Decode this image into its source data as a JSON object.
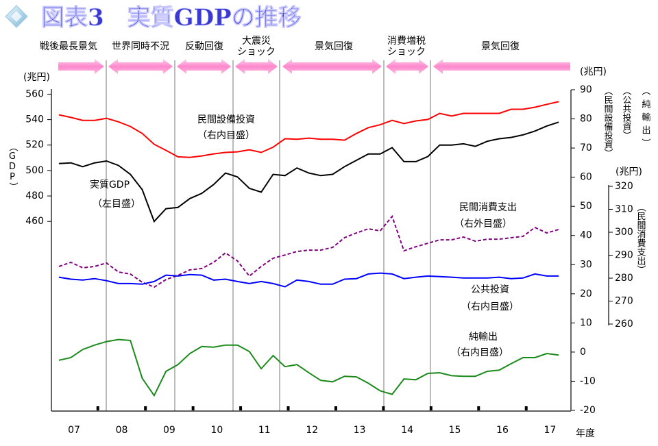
{
  "chart_data": {
    "type": "line",
    "title": "図表3　実質GDPの推移",
    "periods": [
      {
        "label": [
          "戦後最長景気"
        ]
      },
      {
        "label": [
          "世界同時不況"
        ]
      },
      {
        "label": [
          "反動回復"
        ]
      },
      {
        "label": [
          "大震災",
          "ショック"
        ]
      },
      {
        "label": [
          "景気回復"
        ]
      },
      {
        "label": [
          "消費増税",
          "ショック"
        ]
      },
      {
        "label": [
          "景気回復"
        ]
      }
    ],
    "years": [
      "07",
      "08",
      "09",
      "10",
      "11",
      "12",
      "13",
      "14",
      "15",
      "16",
      "17"
    ],
    "x_label": "年度",
    "y_unit": "(兆円)",
    "y_label": "（GDP）",
    "ylim": [
      311,
      564
    ],
    "yticks": [
      460,
      480,
      500,
      520,
      540,
      560
    ],
    "y2_unit": "(兆円)",
    "y2_labels": [
      "（民間設備投資）",
      "（公共投資）",
      "（純輸出）"
    ],
    "y2lim": [
      -20,
      90
    ],
    "y2ticks": [
      -20,
      -10,
      0,
      10,
      20,
      30,
      40,
      50,
      60,
      70,
      80,
      90
    ],
    "y3_unit": "(兆円)",
    "y3_label": "（民間消費支出）",
    "y3lim": [
      260,
      320
    ],
    "y3ticks": [
      260,
      270,
      280,
      290,
      300,
      310,
      320
    ],
    "series": [
      {
        "name": "実質GDP",
        "scale_label": "（左目盛）",
        "color": "#000000",
        "axis": "y",
        "dashed": false,
        "values": [
          505.5,
          506,
          503,
          506,
          507.5,
          504,
          497,
          485,
          460,
          470,
          471,
          478,
          482,
          489,
          498,
          495,
          486,
          483,
          497,
          496,
          502,
          498,
          496,
          497,
          503,
          508,
          513,
          513,
          518,
          507,
          507,
          511,
          520,
          520,
          521,
          519,
          523,
          525,
          526,
          528,
          531,
          535,
          538
        ]
      },
      {
        "name": "民間設備投資",
        "scale_label": "（右内目盛）",
        "color": "#ff0000",
        "axis": "y2",
        "dashed": false,
        "values": [
          81.4,
          80.5,
          79.5,
          79.5,
          80.2,
          79,
          77.4,
          75,
          71.3,
          69.2,
          67,
          66.8,
          67.3,
          68,
          68.5,
          68.7,
          69.4,
          68.5,
          70.3,
          73.2,
          73,
          73.4,
          73,
          73,
          72.7,
          75,
          77,
          78,
          79.5,
          78.4,
          79.3,
          79.8,
          81.9,
          81,
          81.9,
          81.9,
          81.9,
          81.9,
          83.3,
          83.3,
          84,
          85,
          85.9
        ]
      },
      {
        "name": "民間消費支出",
        "scale_label": "（右外目盛）",
        "color": "#800080",
        "axis": "y3",
        "dashed": true,
        "values": [
          285.1,
          286.9,
          284.5,
          285.1,
          286.6,
          282.7,
          281.8,
          278.2,
          276.1,
          279.4,
          281.2,
          283.6,
          284.2,
          286.9,
          291,
          287.5,
          280.9,
          285.1,
          288.7,
          290.1,
          291.6,
          292.2,
          292.2,
          293.4,
          297.6,
          299.7,
          301.5,
          300.6,
          306.9,
          291.9,
          293.7,
          295.2,
          296.7,
          296.7,
          297.9,
          296.1,
          297,
          297,
          297.6,
          298.2,
          302.1,
          299.7,
          301.2
        ]
      },
      {
        "name": "公共投資",
        "scale_label": "（右内目盛）",
        "color": "#0000ff",
        "axis": "y2",
        "dashed": false,
        "values": [
          25.7,
          25,
          24.7,
          25.2,
          24.5,
          23.5,
          23.5,
          23.3,
          24.2,
          26.4,
          26.1,
          26.6,
          26.4,
          24.7,
          25,
          24.2,
          23.5,
          24.2,
          23.5,
          22.4,
          24.7,
          24.2,
          23.3,
          23.3,
          25,
          25.2,
          26.8,
          27.1,
          26.8,
          25.2,
          25.7,
          26.1,
          25.9,
          25.7,
          25.4,
          25.4,
          25.4,
          25.7,
          25.2,
          25.4,
          26.8,
          26.1,
          26.1
        ]
      },
      {
        "name": "純輸出",
        "scale_label": "（右内目盛）",
        "color": "#1a8a1a",
        "axis": "y2",
        "dashed": false,
        "values": [
          -2.8,
          -1.9,
          0.9,
          2.4,
          3.6,
          4.3,
          4,
          -9,
          -14.9,
          -6.6,
          -4.3,
          -0.5,
          1.9,
          1.7,
          2.4,
          2.4,
          0.2,
          -5.7,
          -1.2,
          -5,
          -4.3,
          -7.1,
          -9.7,
          -10.2,
          -8.3,
          -8.5,
          -10.7,
          -13.3,
          -14.5,
          -9.2,
          -9.5,
          -7.3,
          -7.1,
          -8.1,
          -8.3,
          -8.3,
          -6.6,
          -6.2,
          -4,
          -1.9,
          -1.9,
          -0.5,
          -1
        ]
      }
    ]
  }
}
